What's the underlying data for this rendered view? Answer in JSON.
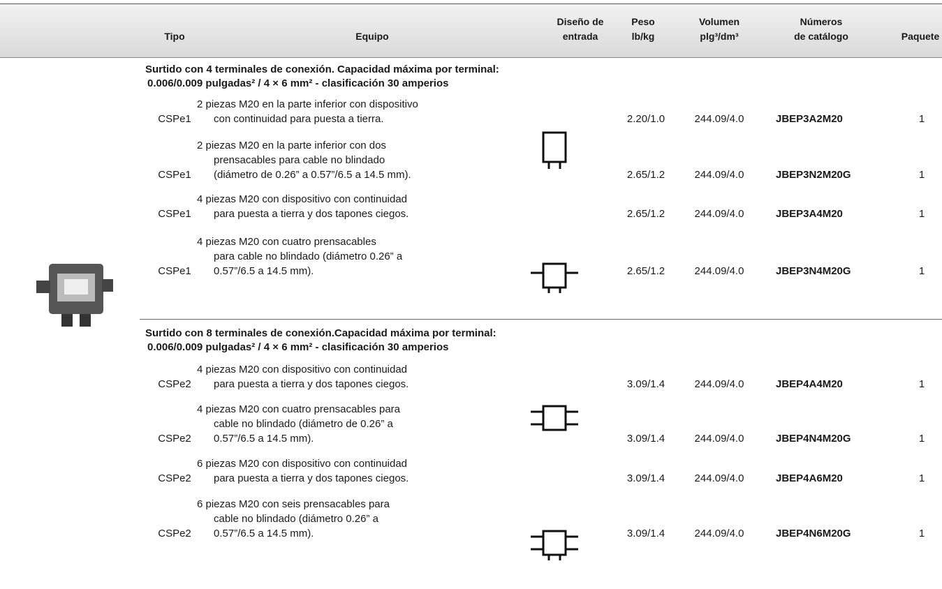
{
  "header": {
    "columns": [
      {
        "lines": [
          "Tipo"
        ]
      },
      {
        "lines": [
          "Equipo"
        ]
      },
      {
        "lines": [
          "Diseño de",
          "entrada"
        ]
      },
      {
        "lines": [
          "Peso",
          "lb/kg"
        ]
      },
      {
        "lines": [
          "Volumen",
          "plg³/dm³"
        ]
      },
      {
        "lines": [
          "Números",
          "de catálogo"
        ]
      },
      {
        "lines": [
          "Paquete"
        ]
      }
    ]
  },
  "sections": [
    {
      "title": [
        "Surtido con 4 terminales de conexión. Capacidad máxima por terminal:",
        "0.006/0.009 pulgadas² / 4 × 6 mm² - clasificación 30 amperios"
      ],
      "rows": [
        {
          "tipo": "CSPe1",
          "equipo": [
            "2 piezas M20 en la parte inferior con dispositivo",
            "con continuidad para puesta a tierra."
          ],
          "peso": "2.20/1.0",
          "volumen": "244.09/4.0",
          "catalogo": "JBEP3A2M20",
          "paquete": "1"
        },
        {
          "tipo": "CSPe1",
          "equipo": [
            "2 piezas M20 en la parte inferior con dos",
            "prensacables para cable no blindado",
            "(diámetro de 0.26” a 0.57”/6.5 a 14.5 mm)."
          ],
          "peso": "2.65/1.2",
          "volumen": "244.09/4.0",
          "catalogo": "JBEP3N2M20G",
          "paquete": "1"
        },
        {
          "tipo": "CSPe1",
          "equipo": [
            "4 piezas M20 con dispositivo con continuidad",
            "para puesta a tierra y dos tapones ciegos."
          ],
          "peso": "2.65/1.2",
          "volumen": "244.09/4.0",
          "catalogo": "JBEP3A4M20",
          "paquete": "1"
        },
        {
          "tipo": "CSPe1",
          "equipo": [
            "4 piezas M20 con cuatro prensacables",
            "para cable no blindado (diámetro 0.26” a",
            "0.57”/6.5 a 14.5 mm)."
          ],
          "peso": "2.65/1.2",
          "volumen": "244.09/4.0",
          "catalogo": "JBEP3N4M20G",
          "paquete": "1"
        }
      ]
    },
    {
      "title": [
        "Surtido con 8 terminales de conexión.Capacidad máxima por terminal:",
        "0.006/0.009 pulgadas² / 4 × 6 mm² - clasificación 30 amperios"
      ],
      "rows": [
        {
          "tipo": "CSPe2",
          "equipo": [
            "4 piezas M20 con dispositivo con continuidad",
            "para puesta a tierra y dos tapones ciegos."
          ],
          "peso": "3.09/1.4",
          "volumen": "244.09/4.0",
          "catalogo": "JBEP4A4M20",
          "paquete": "1"
        },
        {
          "tipo": "CSPe2",
          "equipo": [
            "4 piezas M20 con cuatro prensacables para",
            "cable no blindado (diámetro de 0.26” a",
            "0.57”/6.5 a 14.5 mm)."
          ],
          "peso": "3.09/1.4",
          "volumen": "244.09/4.0",
          "catalogo": "JBEP4N4M20G",
          "paquete": "1"
        },
        {
          "tipo": "CSPe2",
          "equipo": [
            "6 piezas M20 con dispositivo con continuidad",
            "para puesta a tierra y dos tapones ciegos."
          ],
          "peso": "3.09/1.4",
          "volumen": "244.09/4.0",
          "catalogo": "JBEP4A6M20",
          "paquete": "1"
        },
        {
          "tipo": "CSPe2",
          "equipo": [
            "6 piezas M20 con seis prensacables para",
            "cable no blindado (diámetro 0.26” a",
            "0.57”/6.5 a 14.5 mm)."
          ],
          "peso": "3.09/1.4",
          "volumen": "244.09/4.0",
          "catalogo": "JBEP4N6M20G",
          "paquete": "1"
        }
      ]
    }
  ]
}
